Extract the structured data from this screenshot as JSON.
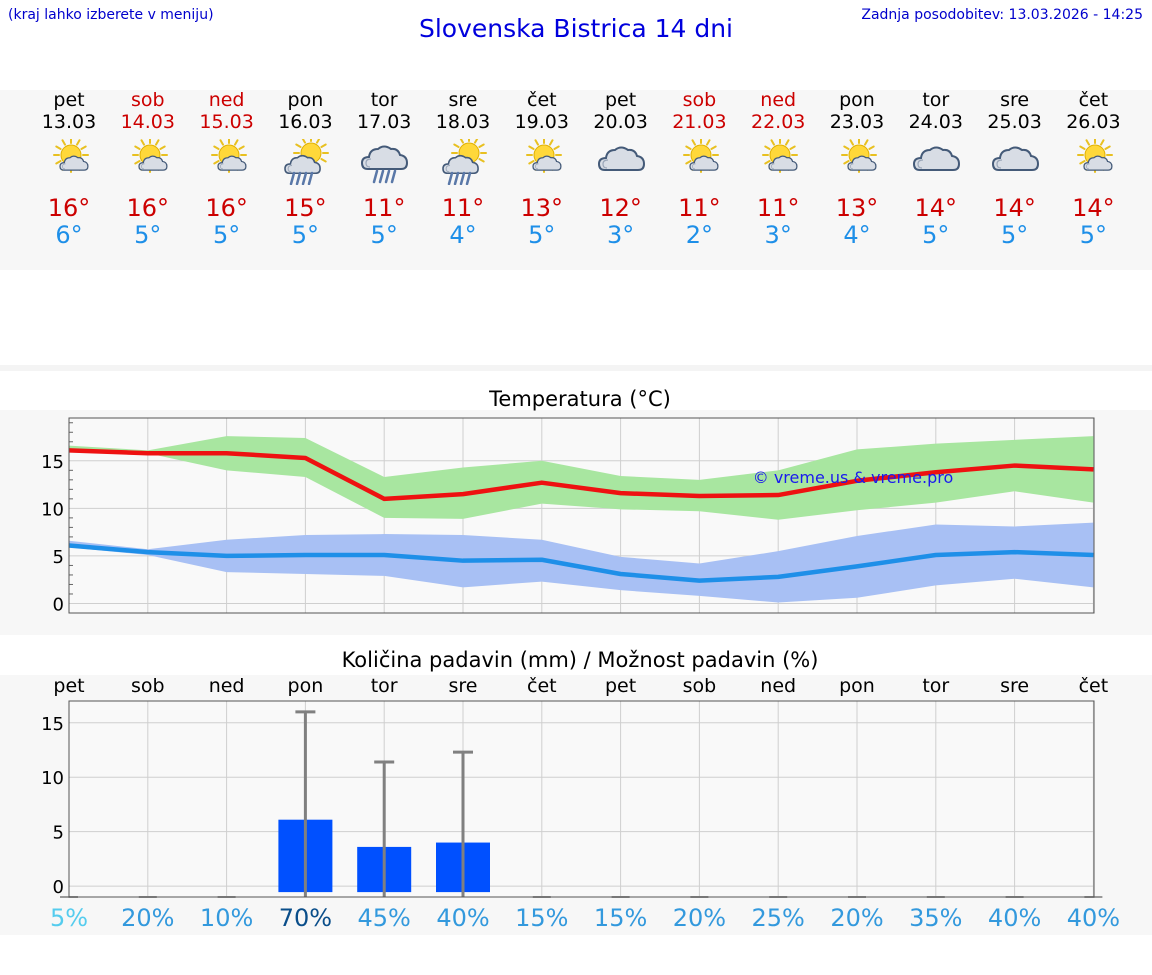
{
  "header": {
    "hint": "(kraj lahko izberete v meniju)",
    "title": "Slovenska Bistrica 14 dni",
    "updated": "Zadnja posodobitev: 13.03.2026 - 14:25"
  },
  "colors": {
    "weekend": "#cc0000",
    "max_temp": "#ee1111",
    "min_temp": "#1e8fe8",
    "max_band": "#a8e6a0",
    "min_band": "#a8c0f4",
    "bar": "#0050ff"
  },
  "days": [
    {
      "name": "pet",
      "date": "13.03",
      "weekend": false,
      "icon": "sun-cloud-icon",
      "max": "16°",
      "min": "6°"
    },
    {
      "name": "sob",
      "date": "14.03",
      "weekend": true,
      "icon": "sun-cloud-icon",
      "max": "16°",
      "min": "5°"
    },
    {
      "name": "ned",
      "date": "15.03",
      "weekend": true,
      "icon": "sun-cloud-icon",
      "max": "16°",
      "min": "5°"
    },
    {
      "name": "pon",
      "date": "16.03",
      "weekend": false,
      "icon": "sun-rain-icon",
      "max": "15°",
      "min": "5°"
    },
    {
      "name": "tor",
      "date": "17.03",
      "weekend": false,
      "icon": "cloud-rain-icon",
      "max": "11°",
      "min": "5°"
    },
    {
      "name": "sre",
      "date": "18.03",
      "weekend": false,
      "icon": "sun-rain-icon",
      "max": "11°",
      "min": "4°"
    },
    {
      "name": "čet",
      "date": "19.03",
      "weekend": false,
      "icon": "sun-cloud-icon",
      "max": "13°",
      "min": "5°"
    },
    {
      "name": "pet",
      "date": "20.03",
      "weekend": false,
      "icon": "cloud-icon",
      "max": "12°",
      "min": "3°"
    },
    {
      "name": "sob",
      "date": "21.03",
      "weekend": true,
      "icon": "sun-cloud-icon",
      "max": "11°",
      "min": "2°"
    },
    {
      "name": "ned",
      "date": "22.03",
      "weekend": true,
      "icon": "sun-cloud-icon",
      "max": "11°",
      "min": "3°"
    },
    {
      "name": "pon",
      "date": "23.03",
      "weekend": false,
      "icon": "sun-cloud-icon",
      "max": "13°",
      "min": "4°"
    },
    {
      "name": "tor",
      "date": "24.03",
      "weekend": false,
      "icon": "cloud-icon",
      "max": "14°",
      "min": "5°"
    },
    {
      "name": "sre",
      "date": "25.03",
      "weekend": false,
      "icon": "cloud-icon",
      "max": "14°",
      "min": "5°"
    },
    {
      "name": "čet",
      "date": "26.03",
      "weekend": false,
      "icon": "sun-cloud-icon",
      "max": "14°",
      "min": "5°"
    }
  ],
  "chart_data": [
    {
      "type": "line",
      "title": "Temperatura (°C)",
      "watermark": "© vreme.us & vreme.pro",
      "ylim": [
        -1,
        19.5
      ],
      "yticks": [
        "0",
        "5",
        "10",
        "15"
      ],
      "ytick_values": [
        0,
        5,
        10,
        15
      ],
      "series": [
        {
          "name": "max",
          "values": [
            16.1,
            15.8,
            15.8,
            15.3,
            11.0,
            11.5,
            12.7,
            11.6,
            11.3,
            11.4,
            12.9,
            13.8,
            14.5,
            14.1
          ]
        },
        {
          "name": "min",
          "values": [
            6.1,
            5.4,
            5.0,
            5.1,
            5.1,
            4.5,
            4.6,
            3.1,
            2.4,
            2.8,
            3.9,
            5.1,
            5.4,
            5.1
          ]
        }
      ],
      "bands": [
        {
          "name": "max-range",
          "low": [
            16.3,
            15.8,
            14.0,
            13.3,
            9.0,
            8.9,
            10.5,
            9.9,
            9.7,
            8.8,
            9.8,
            10.6,
            11.8,
            10.6
          ],
          "high": [
            16.6,
            16.1,
            17.6,
            17.4,
            13.3,
            14.3,
            15.0,
            13.4,
            13.0,
            14.0,
            16.2,
            16.8,
            17.2,
            17.6
          ]
        },
        {
          "name": "min-range",
          "low": [
            5.9,
            5.1,
            3.3,
            3.1,
            2.9,
            1.7,
            2.3,
            1.4,
            0.8,
            0.1,
            0.6,
            1.9,
            2.6,
            1.7
          ],
          "high": [
            6.6,
            5.7,
            6.7,
            7.2,
            7.3,
            7.2,
            6.7,
            4.9,
            4.2,
            5.5,
            7.1,
            8.3,
            8.1,
            8.5
          ]
        }
      ]
    },
    {
      "type": "bar",
      "title": "Količina padavin (mm) / Možnost padavin (%)",
      "categories": [
        "pet",
        "sob",
        "ned",
        "pon",
        "tor",
        "sre",
        "čet",
        "pet",
        "sob",
        "ned",
        "pon",
        "tor",
        "sre",
        "čet"
      ],
      "values": [
        0,
        0,
        0,
        6.1,
        3.6,
        4.0,
        0,
        0,
        0,
        0,
        0,
        0,
        0,
        0
      ],
      "error_high": [
        0,
        0,
        0,
        16.0,
        11.4,
        12.3,
        0,
        0,
        0,
        0,
        0,
        0,
        0,
        0
      ],
      "probability": [
        "5%",
        "20%",
        "10%",
        "70%",
        "45%",
        "40%",
        "15%",
        "15%",
        "20%",
        "25%",
        "20%",
        "35%",
        "40%",
        "40%"
      ],
      "probability_values": [
        5,
        20,
        10,
        70,
        45,
        40,
        15,
        15,
        20,
        25,
        20,
        35,
        40,
        40
      ],
      "ylim": [
        -1,
        17
      ],
      "yticks": [
        "0",
        "5",
        "10",
        "15"
      ],
      "ytick_values": [
        0,
        5,
        10,
        15
      ]
    }
  ]
}
